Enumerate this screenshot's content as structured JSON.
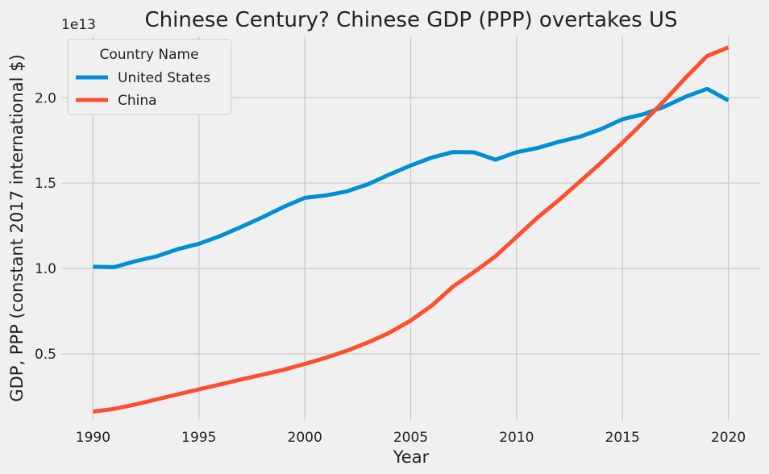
{
  "chart_data": {
    "type": "line",
    "title": "Chinese Century? Chinese GDP (PPP) overtakes US",
    "xlabel": "Year",
    "ylabel": "GDP, PPP (constant 2017 international $)",
    "y_offset_text": "1e13",
    "xlim": [
      1988.5,
      2021.5
    ],
    "ylim": [
      0.108,
      2.36
    ],
    "x_ticks": [
      1990,
      1995,
      2000,
      2005,
      2010,
      2015,
      2020
    ],
    "x_tick_labels": [
      "1990",
      "1995",
      "2000",
      "2005",
      "2010",
      "2015",
      "2020"
    ],
    "y_ticks": [
      0.5,
      1.0,
      1.5,
      2.0
    ],
    "y_tick_labels": [
      "0.5",
      "1.0",
      "1.5",
      "2.0"
    ],
    "grid": true,
    "legend": {
      "title": "Country Name",
      "placement": "top-left"
    },
    "x": [
      1990,
      1991,
      1992,
      1993,
      1994,
      1995,
      1996,
      1997,
      1998,
      1999,
      2000,
      2001,
      2002,
      2003,
      2004,
      2005,
      2006,
      2007,
      2008,
      2009,
      2010,
      2011,
      2012,
      2013,
      2014,
      2015,
      2016,
      2017,
      2018,
      2019,
      2020
    ],
    "series": [
      {
        "name": "United States",
        "color": "#008fd5",
        "values": [
          1.01,
          1.008,
          1.043,
          1.071,
          1.113,
          1.145,
          1.19,
          1.244,
          1.3,
          1.361,
          1.414,
          1.428,
          1.452,
          1.494,
          1.551,
          1.603,
          1.65,
          1.682,
          1.68,
          1.637,
          1.681,
          1.706,
          1.742,
          1.772,
          1.817,
          1.874,
          1.904,
          1.949,
          2.007,
          2.052,
          1.984
        ]
      },
      {
        "name": "China",
        "color": "#fc4f30",
        "values": [
          0.162,
          0.178,
          0.204,
          0.233,
          0.263,
          0.292,
          0.321,
          0.35,
          0.378,
          0.407,
          0.441,
          0.477,
          0.519,
          0.568,
          0.624,
          0.695,
          0.783,
          0.894,
          0.98,
          1.071,
          1.185,
          1.299,
          1.401,
          1.51,
          1.621,
          1.737,
          1.858,
          1.986,
          2.119,
          2.245,
          2.295
        ]
      }
    ]
  }
}
